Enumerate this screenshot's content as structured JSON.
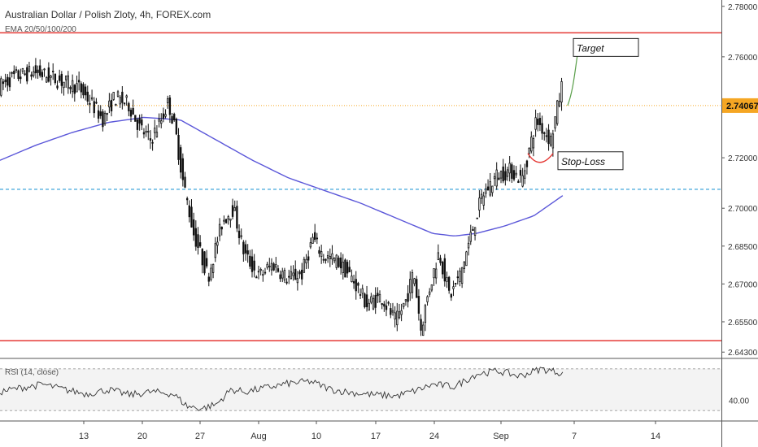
{
  "header": {
    "title": "Australian Dollar / Polish Zloty, 4h, FOREX.com",
    "indicator": "EMA 20/50/100/200"
  },
  "rsi": {
    "label": "RSI (14, close)",
    "tick": "40.00"
  },
  "annotations": {
    "target": "Target",
    "stop_loss": "Stop-Loss"
  },
  "colors": {
    "candle": "#111111",
    "ema": "#5b57d9",
    "range_lines": "#e53935",
    "support_dash": "#2b9bd6",
    "current_price_dot": "#f5a623",
    "price_tag_bg": "#f5a623",
    "target_arrow": "#5a9f4a",
    "stop_arc": "#e53935",
    "rsi_line": "#333333",
    "rsi_band": "#f3f3f3"
  },
  "chart_data": {
    "type": "candlestick",
    "ylim": [
      2.6405,
      2.7825
    ],
    "y_ticks": [
      "2.78000",
      "2.76000",
      "2.74067",
      "2.72000",
      "2.70000",
      "2.68500",
      "2.67000",
      "2.65500",
      "2.64300"
    ],
    "x_ticks": [
      "13",
      "20",
      "27",
      "Aug",
      "10",
      "17",
      "24",
      "Sep",
      "7",
      "14"
    ],
    "current_price": "2.74067",
    "resistance": 2.7695,
    "support": 2.6475,
    "dashed_level": 2.7075,
    "current_price_level": 2.7407,
    "rsi_ylim": [
      20,
      80
    ],
    "rsi_bands": [
      30,
      70
    ],
    "rsi_tick_value": 40,
    "target_value": 2.765,
    "stop_loss_value": 2.7185,
    "price_path": [
      {
        "x": 0,
        "y": 2.748
      },
      {
        "x": 0.02,
        "y": 2.752
      },
      {
        "x": 0.05,
        "y": 2.754
      },
      {
        "x": 0.08,
        "y": 2.751
      },
      {
        "x": 0.11,
        "y": 2.748
      },
      {
        "x": 0.13,
        "y": 2.741
      },
      {
        "x": 0.145,
        "y": 2.735
      },
      {
        "x": 0.16,
        "y": 2.744
      },
      {
        "x": 0.18,
        "y": 2.741
      },
      {
        "x": 0.195,
        "y": 2.732
      },
      {
        "x": 0.21,
        "y": 2.727
      },
      {
        "x": 0.225,
        "y": 2.735
      },
      {
        "x": 0.235,
        "y": 2.742
      },
      {
        "x": 0.245,
        "y": 2.73
      },
      {
        "x": 0.255,
        "y": 2.711
      },
      {
        "x": 0.27,
        "y": 2.69
      },
      {
        "x": 0.29,
        "y": 2.673
      },
      {
        "x": 0.31,
        "y": 2.695
      },
      {
        "x": 0.325,
        "y": 2.7
      },
      {
        "x": 0.34,
        "y": 2.682
      },
      {
        "x": 0.36,
        "y": 2.673
      },
      {
        "x": 0.38,
        "y": 2.678
      },
      {
        "x": 0.4,
        "y": 2.672
      },
      {
        "x": 0.42,
        "y": 2.674
      },
      {
        "x": 0.435,
        "y": 2.688
      },
      {
        "x": 0.45,
        "y": 2.681
      },
      {
        "x": 0.47,
        "y": 2.679
      },
      {
        "x": 0.49,
        "y": 2.672
      },
      {
        "x": 0.51,
        "y": 2.662
      },
      {
        "x": 0.53,
        "y": 2.665
      },
      {
        "x": 0.55,
        "y": 2.655
      },
      {
        "x": 0.565,
        "y": 2.664
      },
      {
        "x": 0.575,
        "y": 2.675
      },
      {
        "x": 0.585,
        "y": 2.652
      },
      {
        "x": 0.595,
        "y": 2.666
      },
      {
        "x": 0.61,
        "y": 2.683
      },
      {
        "x": 0.625,
        "y": 2.665
      },
      {
        "x": 0.64,
        "y": 2.674
      },
      {
        "x": 0.655,
        "y": 2.69
      },
      {
        "x": 0.67,
        "y": 2.705
      },
      {
        "x": 0.69,
        "y": 2.713
      },
      {
        "x": 0.71,
        "y": 2.715
      },
      {
        "x": 0.725,
        "y": 2.711
      },
      {
        "x": 0.745,
        "y": 2.735
      },
      {
        "x": 0.765,
        "y": 2.727
      },
      {
        "x": 0.78,
        "y": 2.748
      }
    ],
    "ema_path": [
      {
        "x": 0,
        "y": 2.719
      },
      {
        "x": 0.05,
        "y": 2.725
      },
      {
        "x": 0.1,
        "y": 2.73
      },
      {
        "x": 0.15,
        "y": 2.734
      },
      {
        "x": 0.2,
        "y": 2.736
      },
      {
        "x": 0.25,
        "y": 2.735
      },
      {
        "x": 0.3,
        "y": 2.727
      },
      {
        "x": 0.35,
        "y": 2.719
      },
      {
        "x": 0.4,
        "y": 2.712
      },
      {
        "x": 0.45,
        "y": 2.707
      },
      {
        "x": 0.5,
        "y": 2.702
      },
      {
        "x": 0.55,
        "y": 2.696
      },
      {
        "x": 0.6,
        "y": 2.69
      },
      {
        "x": 0.63,
        "y": 2.689
      },
      {
        "x": 0.66,
        "y": 2.69
      },
      {
        "x": 0.7,
        "y": 2.693
      },
      {
        "x": 0.74,
        "y": 2.697
      },
      {
        "x": 0.78,
        "y": 2.705
      }
    ],
    "rsi_path": [
      {
        "x": 0,
        "y": 48
      },
      {
        "x": 0.03,
        "y": 52
      },
      {
        "x": 0.06,
        "y": 55
      },
      {
        "x": 0.09,
        "y": 50
      },
      {
        "x": 0.12,
        "y": 46
      },
      {
        "x": 0.15,
        "y": 50
      },
      {
        "x": 0.18,
        "y": 45
      },
      {
        "x": 0.21,
        "y": 48
      },
      {
        "x": 0.24,
        "y": 46
      },
      {
        "x": 0.26,
        "y": 34
      },
      {
        "x": 0.28,
        "y": 32
      },
      {
        "x": 0.3,
        "y": 36
      },
      {
        "x": 0.32,
        "y": 50
      },
      {
        "x": 0.34,
        "y": 48
      },
      {
        "x": 0.37,
        "y": 52
      },
      {
        "x": 0.4,
        "y": 56
      },
      {
        "x": 0.43,
        "y": 58
      },
      {
        "x": 0.46,
        "y": 50
      },
      {
        "x": 0.49,
        "y": 47
      },
      {
        "x": 0.52,
        "y": 45
      },
      {
        "x": 0.55,
        "y": 44
      },
      {
        "x": 0.58,
        "y": 50
      },
      {
        "x": 0.6,
        "y": 55
      },
      {
        "x": 0.63,
        "y": 53
      },
      {
        "x": 0.66,
        "y": 65
      },
      {
        "x": 0.69,
        "y": 68
      },
      {
        "x": 0.72,
        "y": 63
      },
      {
        "x": 0.75,
        "y": 70
      },
      {
        "x": 0.78,
        "y": 66
      }
    ]
  }
}
